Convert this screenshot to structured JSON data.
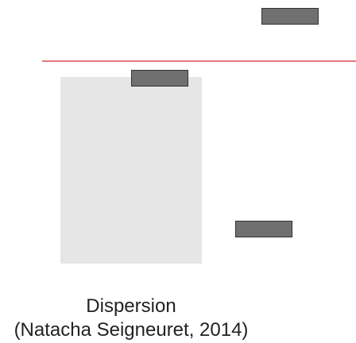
{
  "caption": {
    "title": "Dispersion",
    "credit": "(Natacha Seigneuret, 2014)"
  },
  "colors": {
    "background_panel": "#e6e6e6",
    "reference_line": "#e27b7b",
    "marker_fill": "#707070",
    "marker_border": "#333333",
    "text": "#222222"
  }
}
